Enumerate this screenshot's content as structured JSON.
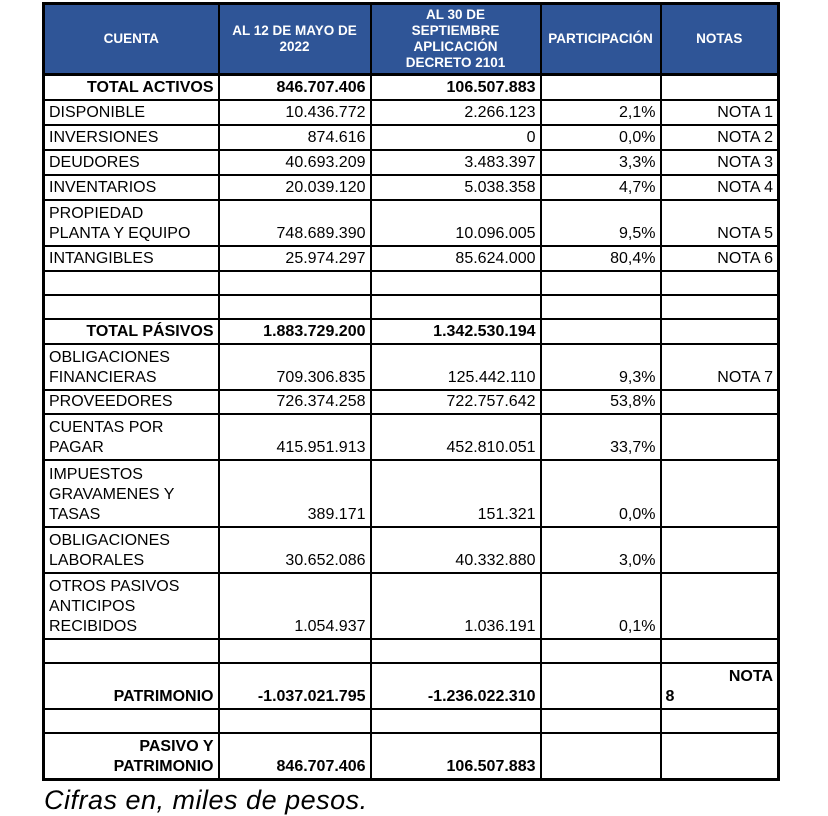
{
  "colors": {
    "header_bg": "#2F5597",
    "header_text": "#FFFFFF",
    "border": "#000000",
    "body_bg": "#FFFFFF"
  },
  "table": {
    "columns": [
      {
        "id": "cuenta",
        "label": "CUENTA"
      },
      {
        "id": "may2022",
        "label": "AL 12 DE MAYO DE\n2022"
      },
      {
        "id": "decreto2101",
        "label": "AL 30 DE\nSEPTIEMBRE\nAPLICACIÓN\nDECRETO 2101"
      },
      {
        "id": "participacion",
        "label": "PARTICIPACIÓN"
      },
      {
        "id": "notas",
        "label": "NOTAS"
      }
    ],
    "rows": [
      {
        "kind": "total",
        "cuenta": "TOTAL ACTIVOS",
        "may2022": "846.707.406",
        "decreto2101": "106.507.883",
        "participacion": "",
        "notas": ""
      },
      {
        "kind": "item",
        "cuenta": "DISPONIBLE",
        "may2022": "10.436.772",
        "decreto2101": "2.266.123",
        "participacion": "2,1%",
        "notas": "NOTA 1"
      },
      {
        "kind": "item",
        "cuenta": "INVERSIONES",
        "may2022": "874.616",
        "decreto2101": "0",
        "participacion": "0,0%",
        "notas": "NOTA 2"
      },
      {
        "kind": "item",
        "cuenta": "DEUDORES",
        "may2022": "40.693.209",
        "decreto2101": "3.483.397",
        "participacion": "3,3%",
        "notas": "NOTA 3"
      },
      {
        "kind": "item",
        "cuenta": "INVENTARIOS",
        "may2022": "20.039.120",
        "decreto2101": "5.038.358",
        "participacion": "4,7%",
        "notas": "NOTA 4"
      },
      {
        "kind": "item",
        "cuenta": "PROPIEDAD\nPLANTA Y EQUIPO",
        "may2022": "748.689.390",
        "decreto2101": "10.096.005",
        "participacion": "9,5%",
        "notas": "NOTA 5"
      },
      {
        "kind": "item",
        "cuenta": "INTANGIBLES",
        "may2022": "25.974.297",
        "decreto2101": "85.624.000",
        "participacion": "80,4%",
        "notas": "NOTA 6"
      },
      {
        "kind": "empty",
        "cuenta": "",
        "may2022": "",
        "decreto2101": "",
        "participacion": "",
        "notas": ""
      },
      {
        "kind": "empty",
        "cuenta": "",
        "may2022": "",
        "decreto2101": "",
        "participacion": "",
        "notas": ""
      },
      {
        "kind": "total",
        "cuenta": "TOTAL PÁSIVOS",
        "may2022": "1.883.729.200",
        "decreto2101": "1.342.530.194",
        "participacion": "",
        "notas": ""
      },
      {
        "kind": "item",
        "cuenta": "OBLIGACIONES\nFINANCIERAS",
        "may2022": "709.306.835",
        "decreto2101": "125.442.110",
        "participacion": "9,3%",
        "notas": "NOTA 7"
      },
      {
        "kind": "item",
        "cuenta": "PROVEEDORES",
        "may2022": "726.374.258",
        "decreto2101": "722.757.642",
        "participacion": "53,8%",
        "notas": ""
      },
      {
        "kind": "item",
        "cuenta": "CUENTAS POR\nPAGAR",
        "may2022": "415.951.913",
        "decreto2101": "452.810.051",
        "participacion": "33,7%",
        "notas": ""
      },
      {
        "kind": "item",
        "cuenta": "IMPUESTOS\nGRAVAMENES Y\nTASAS",
        "may2022": "389.171",
        "decreto2101": "151.321",
        "participacion": "0,0%",
        "notas": ""
      },
      {
        "kind": "item",
        "cuenta": "OBLIGACIONES\nLABORALES",
        "may2022": "30.652.086",
        "decreto2101": "40.332.880",
        "participacion": "3,0%",
        "notas": ""
      },
      {
        "kind": "item",
        "cuenta": "OTROS PASIVOS\nANTICIPOS\nRECIBIDOS",
        "may2022": "1.054.937",
        "decreto2101": "1.036.191",
        "participacion": "0,1%",
        "notas": ""
      },
      {
        "kind": "empty",
        "cuenta": "",
        "may2022": "",
        "decreto2101": "",
        "participacion": "",
        "notas": ""
      },
      {
        "kind": "total",
        "cuenta": "PATRIMONIO",
        "may2022": "-1.037.021.795",
        "decreto2101": "-1.236.022.310",
        "participacion": "",
        "notas": "NOTA 8",
        "notas_wrap": true
      },
      {
        "kind": "empty",
        "cuenta": "",
        "may2022": "",
        "decreto2101": "",
        "participacion": "",
        "notas": ""
      },
      {
        "kind": "total",
        "cuenta": "PASIVO Y\nPATRIMONIO",
        "may2022": "846.707.406",
        "decreto2101": "106.507.883",
        "participacion": "",
        "notas": ""
      }
    ]
  },
  "footer": {
    "caption": "Cifras en, miles de pesos."
  }
}
